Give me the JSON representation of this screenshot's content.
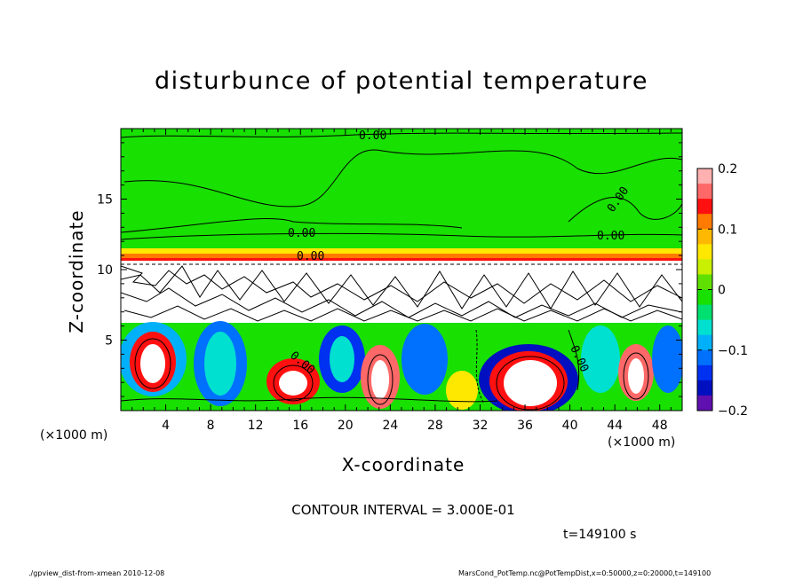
{
  "chart_data": {
    "type": "heatmap",
    "title": "disturbunce of potential temperature",
    "xlabel": "X-coordinate",
    "ylabel": "Z-coordinate",
    "x_unit": "(×1000 m)",
    "z_unit": "(×1000 m)",
    "xlim": [
      0,
      50
    ],
    "zlim": [
      0,
      20
    ],
    "x_ticks": [
      4,
      8,
      12,
      16,
      20,
      24,
      28,
      32,
      36,
      40,
      44,
      48
    ],
    "z_ticks": [
      5,
      10,
      15
    ],
    "colorbar": {
      "range": [
        -0.2,
        0.2
      ],
      "tick_labels": [
        "0.2",
        "0.1",
        "0",
        "−0.1",
        "−0.2"
      ],
      "tick_values": [
        0.2,
        0.1,
        0,
        -0.1,
        -0.2
      ],
      "colors": [
        "#ffb0b0",
        "#ff6868",
        "#ff1010",
        "#ff7a00",
        "#ffb800",
        "#ffe800",
        "#c8f000",
        "#60e000",
        "#18e000",
        "#00e070",
        "#00e0d0",
        "#00b0f8",
        "#0070ff",
        "#0030f0",
        "#0010c0",
        "#6010b0"
      ]
    },
    "contour_labels": [
      "0.00",
      "0.00",
      "0.00",
      "0.00",
      "0.00",
      "0.00",
      "0.00"
    ],
    "contour_interval": "CONTOUR INTERVAL = 3.000E-01",
    "time_label": "t=149100 s"
  },
  "footer": {
    "left": "./gpview_dist-from-xmean  2010-12-08",
    "right": "MarsCond_PotTemp.nc@PotTempDist,x=0:50000,z=0:20000,t=149100"
  }
}
